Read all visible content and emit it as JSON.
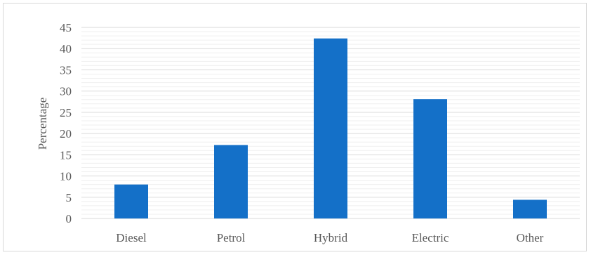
{
  "chart_data": {
    "type": "bar",
    "title": "",
    "xlabel": "",
    "ylabel": "Percentage",
    "categories": [
      "Diesel",
      "Petrol",
      "Hybrid",
      "Electric",
      "Other"
    ],
    "values": [
      8,
      17.3,
      42.4,
      28.1,
      4.4
    ],
    "ylim": [
      0,
      45
    ],
    "yticks": [
      "0",
      "5",
      "10",
      "15",
      "20",
      "25",
      "30",
      "35",
      "40",
      "45"
    ],
    "grid": true,
    "legend": "none",
    "bar_color": "#1470c8",
    "grid_color": "#d9d9d9"
  }
}
